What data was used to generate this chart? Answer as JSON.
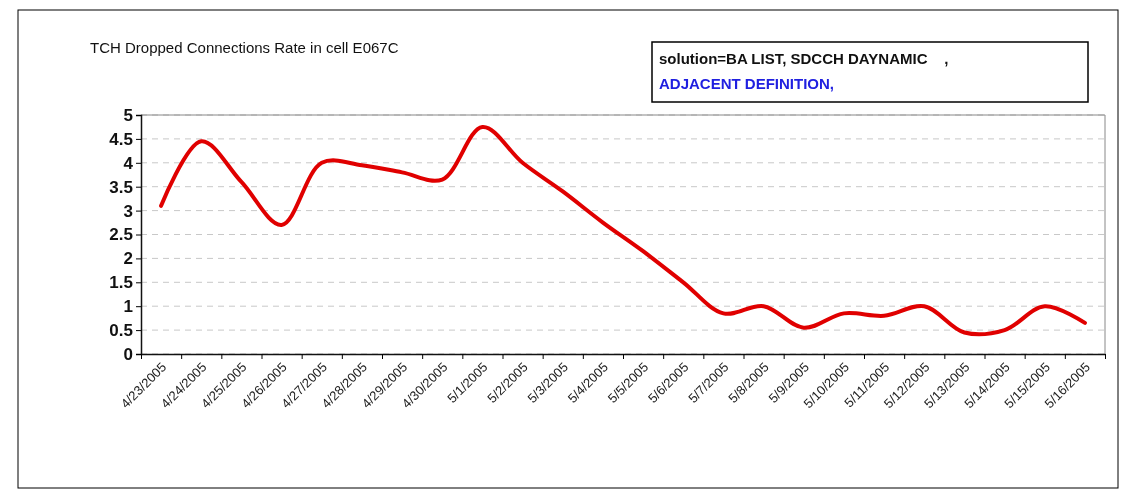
{
  "chart_data": {
    "type": "line",
    "title": "TCH Dropped Connections Rate in cell E067C",
    "annotations": [
      "solution=BA LIST, SDCCH DAYNAMIC    ,",
      "ADJACENT DEFINITION,"
    ],
    "categories": [
      "4/23/2005",
      "4/24/2005",
      "4/25/2005",
      "4/26/2005",
      "4/27/2005",
      "4/28/2005",
      "4/29/2005",
      "4/30/2005",
      "5/1/2005",
      "5/2/2005",
      "5/3/2005",
      "5/4/2005",
      "5/5/2005",
      "5/6/2005",
      "5/7/2005",
      "5/8/2005",
      "5/9/2005",
      "5/10/2005",
      "5/11/2005",
      "5/12/2005",
      "5/13/2005",
      "5/14/2005",
      "5/15/2005",
      "5/16/2005"
    ],
    "series": [
      {
        "color": "#e00000",
        "values": [
          3.1,
          4.45,
          3.6,
          2.7,
          4.0,
          3.95,
          3.8,
          3.65,
          4.75,
          4.0,
          3.4,
          2.75,
          2.15,
          1.5,
          0.85,
          1.0,
          0.55,
          0.85,
          0.8,
          1.0,
          0.45,
          0.5,
          1.0,
          0.65
        ]
      }
    ],
    "ylim": [
      0,
      5
    ],
    "yticks": [
      0,
      0.5,
      1,
      1.5,
      2,
      2.5,
      3,
      3.5,
      4,
      4.5,
      5
    ],
    "grid": "y",
    "marker": "none",
    "line_style": "solid"
  }
}
